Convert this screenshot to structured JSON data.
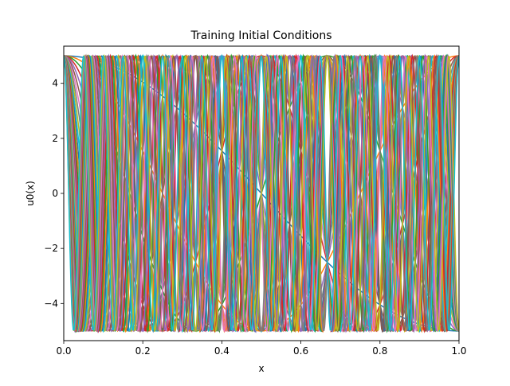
{
  "chart_data": {
    "type": "line",
    "title": "Training Initial Conditions",
    "xlabel": "x",
    "ylabel": "u0(x)",
    "xlim": [
      0.0,
      1.0
    ],
    "ylim": [
      -5.35,
      5.35
    ],
    "grid": false,
    "legend": "none",
    "x_ticks": [
      0.0,
      0.2,
      0.4,
      0.6,
      0.8,
      1.0
    ],
    "x_tick_labels": [
      "0.0",
      "0.2",
      "0.4",
      "0.6",
      "0.8",
      "1.0"
    ],
    "y_ticks": [
      -4,
      -2,
      0,
      2,
      4
    ],
    "y_tick_labels": [
      "−4",
      "−2",
      "0",
      "2",
      "4"
    ],
    "amplitude": 5,
    "function": "u0(x) = 5·cos(k·π·x)",
    "series_k": [
      1,
      2,
      3,
      4,
      5,
      6,
      7,
      8,
      9,
      10,
      11,
      12,
      13,
      14,
      15,
      16,
      17,
      18,
      19,
      20,
      21,
      22,
      23,
      24,
      25,
      26,
      27,
      28,
      29,
      30,
      31,
      32,
      33,
      34,
      35,
      36,
      37,
      38,
      39,
      40
    ],
    "colors": [
      "#1f77b4",
      "#ff7f0e",
      "#2ca02c",
      "#d62728",
      "#9467bd",
      "#8c564b",
      "#e377c2",
      "#7f7f7f",
      "#bcbd22",
      "#17becf"
    ]
  }
}
